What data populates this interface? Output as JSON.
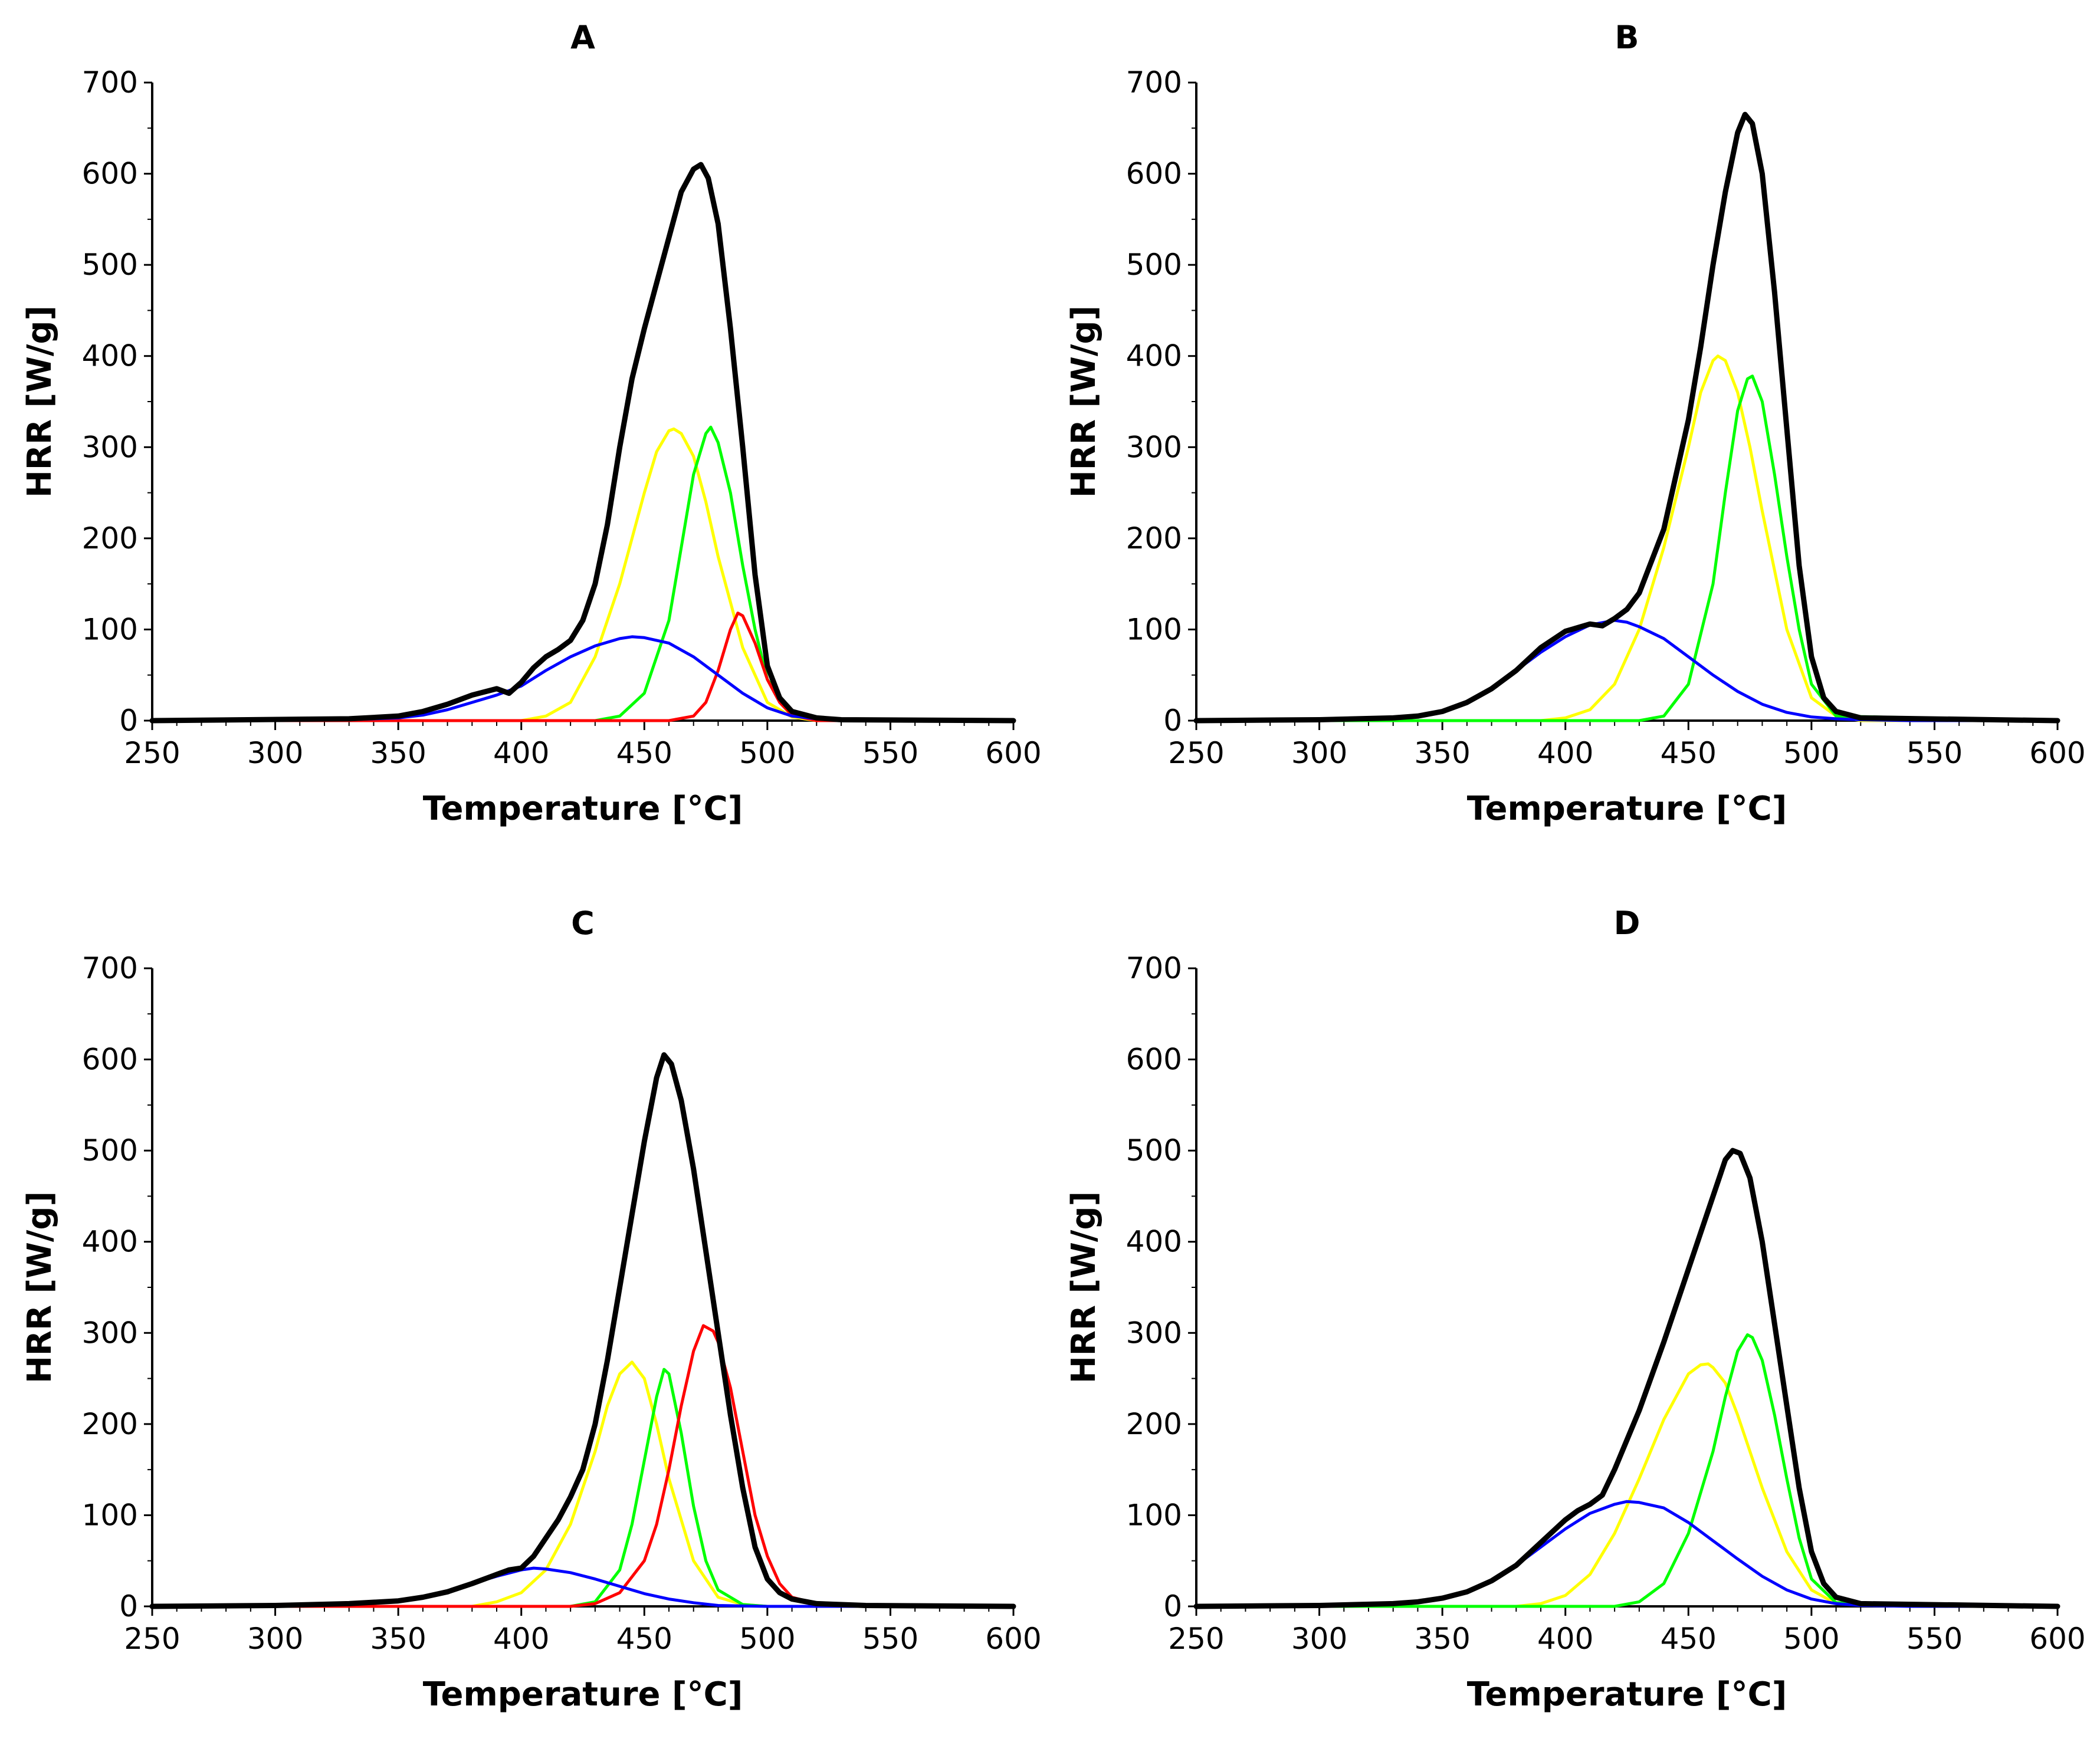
{
  "chart_data": [
    {
      "type": "line",
      "title": "A",
      "xlabel": "Temperature [°C]",
      "ylabel": "HRR [W/g]",
      "xlim": [
        250,
        600
      ],
      "ylim": [
        0,
        700
      ],
      "xticks": [
        250,
        300,
        350,
        400,
        450,
        500,
        550,
        600
      ],
      "yticks": [
        0,
        100,
        200,
        300,
        400,
        500,
        600,
        700
      ],
      "grid": false,
      "series": [
        {
          "color": "#000000",
          "x": [
            250,
            330,
            350,
            360,
            370,
            380,
            390,
            395,
            400,
            405,
            410,
            415,
            420,
            425,
            430,
            435,
            440,
            445,
            450,
            455,
            460,
            465,
            470,
            473,
            476,
            480,
            485,
            490,
            495,
            500,
            505,
            510,
            520,
            530,
            600
          ],
          "y": [
            0,
            2,
            5,
            10,
            18,
            28,
            35,
            30,
            42,
            58,
            70,
            78,
            88,
            110,
            150,
            215,
            300,
            375,
            430,
            480,
            530,
            580,
            605,
            610,
            595,
            545,
            430,
            300,
            160,
            60,
            25,
            10,
            3,
            1,
            0
          ]
        },
        {
          "color": "#ffff00",
          "x": [
            250,
            400,
            410,
            420,
            430,
            440,
            450,
            455,
            460,
            462,
            465,
            470,
            475,
            480,
            490,
            500,
            510,
            520,
            600
          ],
          "y": [
            0,
            0,
            5,
            20,
            70,
            150,
            250,
            295,
            318,
            320,
            315,
            290,
            240,
            180,
            80,
            20,
            4,
            0,
            0
          ]
        },
        {
          "color": "#00ff00",
          "x": [
            250,
            430,
            440,
            450,
            460,
            465,
            470,
            475,
            477,
            480,
            485,
            490,
            495,
            500,
            510,
            520,
            600
          ],
          "y": [
            0,
            0,
            5,
            30,
            110,
            190,
            270,
            315,
            322,
            305,
            250,
            170,
            100,
            45,
            8,
            0,
            0
          ]
        },
        {
          "color": "#ff0000",
          "x": [
            250,
            460,
            470,
            475,
            480,
            485,
            488,
            490,
            495,
            500,
            505,
            510,
            520,
            600
          ],
          "y": [
            0,
            0,
            5,
            20,
            55,
            100,
            118,
            115,
            85,
            45,
            20,
            6,
            0,
            0
          ]
        },
        {
          "color": "#0000ff",
          "x": [
            250,
            330,
            350,
            360,
            370,
            380,
            390,
            400,
            410,
            420,
            430,
            440,
            445,
            450,
            460,
            470,
            480,
            490,
            500,
            510,
            520,
            540,
            600
          ],
          "y": [
            0,
            1,
            3,
            6,
            12,
            20,
            28,
            38,
            55,
            70,
            82,
            90,
            92,
            91,
            85,
            70,
            50,
            30,
            14,
            5,
            2,
            0,
            0
          ]
        }
      ]
    },
    {
      "type": "line",
      "title": "B",
      "xlabel": "Temperature [°C]",
      "ylabel": "HRR [W/g]",
      "xlim": [
        250,
        600
      ],
      "ylim": [
        0,
        700
      ],
      "xticks": [
        250,
        300,
        350,
        400,
        450,
        500,
        550,
        600
      ],
      "yticks": [
        0,
        100,
        200,
        300,
        400,
        500,
        600,
        700
      ],
      "grid": false,
      "series": [
        {
          "color": "#000000",
          "x": [
            250,
            300,
            330,
            340,
            350,
            360,
            370,
            380,
            390,
            400,
            410,
            415,
            420,
            425,
            430,
            440,
            450,
            455,
            460,
            465,
            470,
            473,
            476,
            480,
            485,
            490,
            495,
            500,
            505,
            510,
            520,
            600
          ],
          "y": [
            0,
            1,
            3,
            5,
            10,
            20,
            35,
            55,
            80,
            98,
            106,
            104,
            112,
            122,
            140,
            210,
            330,
            410,
            500,
            580,
            645,
            665,
            655,
            600,
            470,
            320,
            170,
            70,
            25,
            10,
            3,
            0
          ]
        },
        {
          "color": "#ffff00",
          "x": [
            250,
            390,
            400,
            410,
            420,
            430,
            440,
            450,
            455,
            460,
            462,
            465,
            470,
            475,
            480,
            490,
            500,
            510,
            520,
            600
          ],
          "y": [
            0,
            0,
            3,
            12,
            40,
            100,
            190,
            300,
            360,
            395,
            400,
            395,
            360,
            300,
            230,
            100,
            25,
            5,
            0,
            0
          ]
        },
        {
          "color": "#00ff00",
          "x": [
            250,
            430,
            440,
            450,
            460,
            465,
            470,
            474,
            476,
            480,
            485,
            490,
            495,
            500,
            510,
            600
          ],
          "y": [
            0,
            0,
            5,
            40,
            150,
            250,
            340,
            375,
            378,
            350,
            270,
            180,
            100,
            40,
            5,
            0
          ]
        },
        {
          "color": "#0000ff",
          "x": [
            250,
            300,
            330,
            340,
            350,
            360,
            370,
            380,
            390,
            400,
            410,
            420,
            425,
            430,
            440,
            450,
            460,
            470,
            480,
            490,
            500,
            510,
            520,
            540,
            600
          ],
          "y": [
            0,
            1,
            3,
            5,
            10,
            20,
            35,
            55,
            75,
            92,
            105,
            110,
            108,
            103,
            90,
            70,
            50,
            32,
            18,
            9,
            4,
            2,
            1,
            0,
            0
          ]
        }
      ]
    },
    {
      "type": "line",
      "title": "C",
      "xlabel": "Temperature [°C]",
      "ylabel": "HRR [W/g]",
      "xlim": [
        250,
        600
      ],
      "ylim": [
        0,
        700
      ],
      "xticks": [
        250,
        300,
        350,
        400,
        450,
        500,
        550,
        600
      ],
      "yticks": [
        0,
        100,
        200,
        300,
        400,
        500,
        600,
        700
      ],
      "grid": false,
      "series": [
        {
          "color": "#000000",
          "x": [
            250,
            300,
            330,
            350,
            360,
            370,
            380,
            390,
            395,
            400,
            405,
            410,
            415,
            420,
            425,
            430,
            435,
            440,
            445,
            450,
            455,
            458,
            461,
            465,
            470,
            475,
            480,
            485,
            490,
            495,
            500,
            505,
            510,
            520,
            540,
            600
          ],
          "y": [
            0,
            1,
            3,
            6,
            10,
            16,
            25,
            35,
            40,
            42,
            55,
            75,
            95,
            120,
            150,
            200,
            270,
            350,
            430,
            510,
            580,
            605,
            595,
            555,
            480,
            390,
            300,
            210,
            130,
            65,
            30,
            15,
            8,
            3,
            1,
            0
          ]
        },
        {
          "color": "#ffff00",
          "x": [
            250,
            380,
            390,
            400,
            410,
            420,
            430,
            435,
            440,
            445,
            450,
            455,
            460,
            470,
            480,
            490,
            500,
            600
          ],
          "y": [
            0,
            0,
            5,
            15,
            40,
            90,
            170,
            220,
            255,
            268,
            250,
            200,
            140,
            50,
            10,
            2,
            0,
            0
          ]
        },
        {
          "color": "#00ff00",
          "x": [
            250,
            420,
            430,
            440,
            445,
            450,
            455,
            458,
            460,
            465,
            470,
            475,
            480,
            490,
            500,
            600
          ],
          "y": [
            0,
            0,
            5,
            40,
            90,
            160,
            230,
            260,
            255,
            190,
            110,
            50,
            18,
            2,
            0,
            0
          ]
        },
        {
          "color": "#ff0000",
          "x": [
            250,
            420,
            430,
            440,
            450,
            455,
            460,
            465,
            470,
            474,
            478,
            480,
            485,
            490,
            495,
            500,
            505,
            510,
            520,
            540,
            600
          ],
          "y": [
            0,
            0,
            3,
            15,
            50,
            90,
            150,
            220,
            280,
            308,
            302,
            290,
            240,
            170,
            100,
            55,
            25,
            10,
            3,
            0,
            0
          ]
        },
        {
          "color": "#0000ff",
          "x": [
            250,
            300,
            330,
            350,
            360,
            370,
            380,
            390,
            400,
            405,
            410,
            420,
            430,
            440,
            450,
            460,
            470,
            480,
            500,
            600
          ],
          "y": [
            0,
            1,
            3,
            6,
            10,
            16,
            25,
            33,
            40,
            42,
            41,
            37,
            30,
            22,
            14,
            8,
            4,
            1,
            0,
            0
          ]
        }
      ]
    },
    {
      "type": "line",
      "title": "D",
      "xlabel": "Temperature [°C]",
      "ylabel": "HRR [W/g]",
      "xlim": [
        250,
        600
      ],
      "ylim": [
        0,
        700
      ],
      "xticks": [
        250,
        300,
        350,
        400,
        450,
        500,
        550,
        600
      ],
      "yticks": [
        0,
        100,
        200,
        300,
        400,
        500,
        600,
        700
      ],
      "grid": false,
      "series": [
        {
          "color": "#000000",
          "x": [
            250,
            300,
            330,
            340,
            350,
            360,
            370,
            380,
            390,
            400,
            405,
            410,
            415,
            420,
            430,
            440,
            450,
            455,
            460,
            465,
            468,
            471,
            475,
            480,
            485,
            490,
            495,
            500,
            505,
            510,
            520,
            600
          ],
          "y": [
            0,
            1,
            3,
            5,
            9,
            16,
            28,
            45,
            70,
            95,
            105,
            112,
            122,
            150,
            215,
            290,
            370,
            410,
            450,
            490,
            500,
            497,
            470,
            400,
            310,
            220,
            130,
            60,
            25,
            10,
            3,
            0
          ]
        },
        {
          "color": "#ffff00",
          "x": [
            250,
            380,
            390,
            400,
            410,
            420,
            430,
            440,
            450,
            455,
            458,
            460,
            465,
            470,
            480,
            490,
            500,
            510,
            600
          ],
          "y": [
            0,
            0,
            3,
            12,
            35,
            80,
            140,
            205,
            255,
            265,
            266,
            262,
            245,
            210,
            130,
            60,
            18,
            3,
            0
          ]
        },
        {
          "color": "#00ff00",
          "x": [
            250,
            420,
            430,
            440,
            450,
            460,
            465,
            470,
            474,
            476,
            480,
            485,
            490,
            495,
            500,
            510,
            600
          ],
          "y": [
            0,
            0,
            5,
            25,
            80,
            170,
            230,
            280,
            298,
            295,
            270,
            210,
            140,
            75,
            30,
            4,
            0
          ]
        },
        {
          "color": "#0000ff",
          "x": [
            250,
            300,
            330,
            340,
            350,
            360,
            370,
            380,
            390,
            400,
            410,
            420,
            425,
            430,
            440,
            450,
            460,
            470,
            480,
            490,
            500,
            510,
            520,
            540,
            600
          ],
          "y": [
            0,
            1,
            3,
            5,
            9,
            16,
            28,
            45,
            65,
            85,
            102,
            112,
            115,
            114,
            108,
            92,
            72,
            52,
            33,
            18,
            8,
            3,
            1,
            0,
            0
          ]
        }
      ]
    }
  ]
}
